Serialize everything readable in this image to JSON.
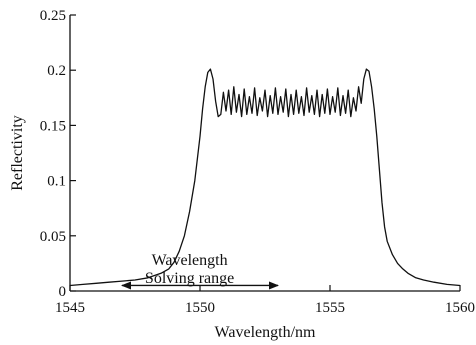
{
  "chart_data": {
    "type": "line",
    "title": "",
    "xlabel": "Wavelength/nm",
    "ylabel": "Reflectivity",
    "xlim": [
      1545,
      1560
    ],
    "ylim": [
      0,
      0.25
    ],
    "grid": false,
    "x_ticks": [
      1545,
      1550,
      1555,
      1560
    ],
    "x_tick_labels": [
      "1545",
      "1550",
      "1555",
      "1560"
    ],
    "y_ticks": [
      0,
      0.05,
      0.1,
      0.15,
      0.2,
      0.25
    ],
    "y_tick_labels": [
      "0",
      "0.05",
      "0.1",
      "0.15",
      "0.2",
      "0.25"
    ],
    "annotation": {
      "lines": [
        "Wavelength",
        "Solving range"
      ],
      "arrow_from": [
        1547,
        0.005
      ],
      "arrow_to": [
        1553,
        0.005
      ],
      "text_x": 1549.6,
      "text_y": [
        0.028,
        0.012
      ]
    },
    "series": [
      {
        "x": [
          1545.0,
          1545.5,
          1546.0,
          1546.5,
          1547.0,
          1547.5,
          1548.0,
          1548.5,
          1548.8,
          1549.0,
          1549.2,
          1549.4,
          1549.6,
          1549.8,
          1550.0,
          1550.1,
          1550.2,
          1550.3,
          1550.4,
          1550.5,
          1550.6,
          1550.7,
          1550.8,
          1550.9,
          1551.0,
          1551.1,
          1551.2,
          1551.3,
          1551.4,
          1551.5,
          1551.6,
          1551.7,
          1551.8,
          1551.9,
          1552.0,
          1552.1,
          1552.2,
          1552.3,
          1552.4,
          1552.5,
          1552.6,
          1552.7,
          1552.8,
          1552.9,
          1553.0,
          1553.1,
          1553.2,
          1553.3,
          1553.4,
          1553.5,
          1553.6,
          1553.7,
          1553.8,
          1553.9,
          1554.0,
          1554.1,
          1554.2,
          1554.3,
          1554.4,
          1554.5,
          1554.6,
          1554.7,
          1554.8,
          1554.9,
          1555.0,
          1555.1,
          1555.2,
          1555.3,
          1555.4,
          1555.5,
          1555.6,
          1555.7,
          1555.8,
          1555.9,
          1556.0,
          1556.1,
          1556.2,
          1556.3,
          1556.4,
          1556.5,
          1556.6,
          1556.7,
          1556.8,
          1556.9,
          1557.0,
          1557.1,
          1557.2,
          1557.4,
          1557.6,
          1557.8,
          1558.0,
          1558.3,
          1558.6,
          1559.0,
          1559.5,
          1560.0
        ],
        "y": [
          0.005,
          0.006,
          0.007,
          0.008,
          0.009,
          0.01,
          0.012,
          0.016,
          0.02,
          0.026,
          0.036,
          0.05,
          0.072,
          0.1,
          0.14,
          0.165,
          0.185,
          0.198,
          0.201,
          0.192,
          0.172,
          0.158,
          0.16,
          0.18,
          0.163,
          0.182,
          0.16,
          0.185,
          0.162,
          0.178,
          0.158,
          0.183,
          0.16,
          0.176,
          0.161,
          0.184,
          0.159,
          0.175,
          0.163,
          0.182,
          0.158,
          0.177,
          0.161,
          0.184,
          0.16,
          0.176,
          0.162,
          0.183,
          0.158,
          0.178,
          0.16,
          0.182,
          0.161,
          0.176,
          0.159,
          0.184,
          0.162,
          0.177,
          0.16,
          0.182,
          0.158,
          0.178,
          0.161,
          0.183,
          0.16,
          0.176,
          0.162,
          0.184,
          0.159,
          0.177,
          0.161,
          0.182,
          0.158,
          0.175,
          0.163,
          0.185,
          0.17,
          0.192,
          0.201,
          0.199,
          0.185,
          0.165,
          0.14,
          0.11,
          0.08,
          0.058,
          0.045,
          0.033,
          0.025,
          0.02,
          0.016,
          0.012,
          0.01,
          0.008,
          0.006,
          0.005
        ]
      }
    ]
  }
}
